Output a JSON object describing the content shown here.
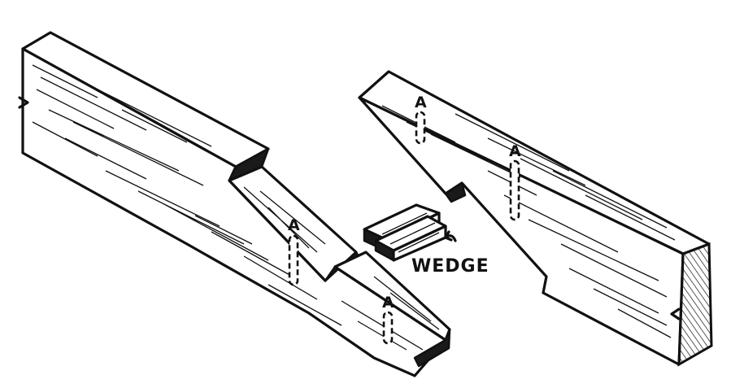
{
  "figure": {
    "wedge_label": "WEDGE",
    "pin_marker": "A"
  }
}
